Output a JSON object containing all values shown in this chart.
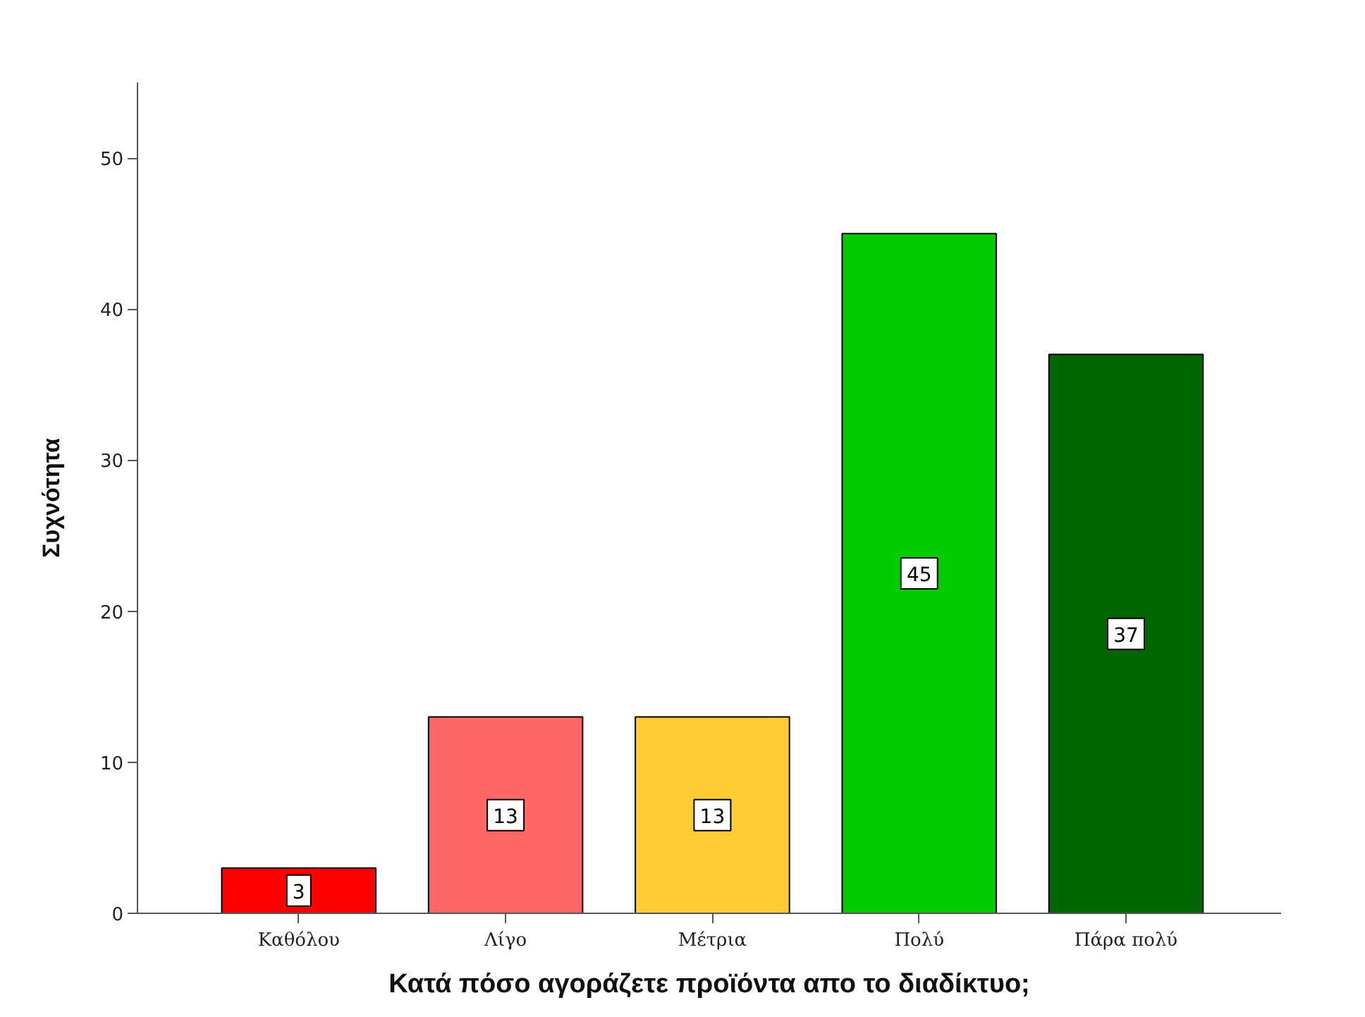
{
  "chart_data": {
    "type": "bar",
    "xlabel": "Κατά πόσο αγοράζετε προϊόντα απο το διαδίκτυο;",
    "ylabel": "Συχνότητα",
    "categories": [
      "Καθόλου",
      "Λίγο",
      "Μέτρια",
      "Πολύ",
      "Πάρα πολύ"
    ],
    "values": [
      3,
      13,
      13,
      45,
      37
    ],
    "colors": [
      "#ff0000",
      "#ff6666",
      "#ffcc33",
      "#00cc00",
      "#006600"
    ],
    "ylim": [
      0,
      55
    ],
    "yticks": [
      0,
      10,
      20,
      30,
      40,
      50
    ],
    "data_labels": true,
    "grid": false
  }
}
